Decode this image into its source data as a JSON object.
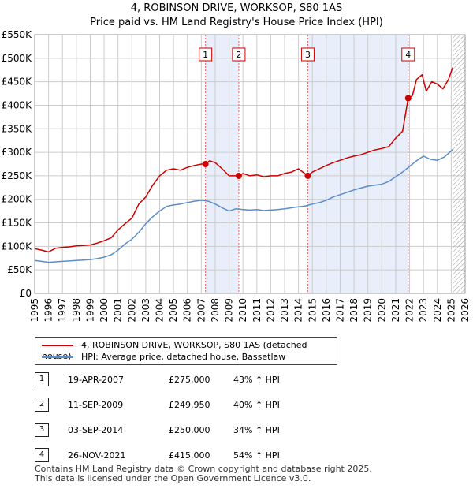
{
  "title": {
    "line1": "4, ROBINSON DRIVE, WORKSOP, S80 1AS",
    "line2": "Price paid vs. HM Land Registry's House Price Index (HPI)"
  },
  "colors": {
    "property": "#cc0000",
    "hpi": "#5b8dc9",
    "shade": "#e8eefa",
    "marker_line": "#e06666",
    "grid": "#cccccc"
  },
  "legend": {
    "property_label": "4, ROBINSON DRIVE, WORKSOP, S80 1AS (detached house)",
    "hpi_label": "HPI: Average price, detached house, Bassetlaw"
  },
  "sales": [
    {
      "num": "1",
      "date": "19-APR-2007",
      "price": "£275,000",
      "hpi": "43% ↑ HPI"
    },
    {
      "num": "2",
      "date": "11-SEP-2009",
      "price": "£249,950",
      "hpi": "40% ↑ HPI"
    },
    {
      "num": "3",
      "date": "03-SEP-2014",
      "price": "£250,000",
      "hpi": "34% ↑ HPI"
    },
    {
      "num": "4",
      "date": "26-NOV-2021",
      "price": "£415,000",
      "hpi": "54% ↑ HPI"
    }
  ],
  "footer": {
    "line1": "Contains HM Land Registry data © Crown copyright and database right 2025.",
    "line2": "This data is licensed under the Open Government Licence v3.0."
  },
  "chart_data": {
    "type": "line",
    "title": "Price paid vs. HM Land Registry's House Price Index (HPI)",
    "xlabel": "",
    "ylabel": "",
    "xlim": [
      1995,
      2026
    ],
    "ylim": [
      0,
      550000
    ],
    "y_ticks": [
      {
        "value": 0,
        "label": "£0"
      },
      {
        "value": 50000,
        "label": "£50K"
      },
      {
        "value": 100000,
        "label": "£100K"
      },
      {
        "value": 150000,
        "label": "£150K"
      },
      {
        "value": 200000,
        "label": "£200K"
      },
      {
        "value": 250000,
        "label": "£250K"
      },
      {
        "value": 300000,
        "label": "£300K"
      },
      {
        "value": 350000,
        "label": "£350K"
      },
      {
        "value": 400000,
        "label": "£400K"
      },
      {
        "value": 450000,
        "label": "£450K"
      },
      {
        "value": 500000,
        "label": "£500K"
      },
      {
        "value": 550000,
        "label": "£550K"
      }
    ],
    "x_ticks": [
      "1995",
      "1996",
      "1997",
      "1998",
      "1999",
      "2000",
      "2001",
      "2002",
      "2003",
      "2004",
      "2005",
      "2006",
      "2007",
      "2008",
      "2009",
      "2010",
      "2011",
      "2012",
      "2013",
      "2014",
      "2015",
      "2016",
      "2017",
      "2018",
      "2019",
      "2020",
      "2021",
      "2022",
      "2023",
      "2024",
      "2025",
      "2026"
    ],
    "grid": true,
    "shaded_ranges": [
      [
        2007.3,
        2009.7
      ],
      [
        2014.67,
        2021.9
      ]
    ],
    "future_hatch_from": 2025.1,
    "sale_markers": [
      {
        "label": "1",
        "x": 2007.3,
        "y": 275000
      },
      {
        "label": "2",
        "x": 2009.7,
        "y": 249950
      },
      {
        "label": "3",
        "x": 2014.67,
        "y": 250000
      },
      {
        "label": "4",
        "x": 2021.9,
        "y": 415000
      }
    ],
    "series": [
      {
        "name": "4, ROBINSON DRIVE, WORKSOP, S80 1AS (detached house)",
        "x": [
          1995,
          1995.5,
          1996,
          1996.5,
          1997,
          1997.5,
          1998,
          1998.5,
          1999,
          1999.5,
          2000,
          2000.5,
          2001,
          2001.5,
          2002,
          2002.5,
          2003,
          2003.5,
          2004,
          2004.5,
          2005,
          2005.5,
          2006,
          2006.5,
          2007,
          2007.3,
          2007.6,
          2008,
          2008.5,
          2009,
          2009.7,
          2010,
          2010.5,
          2011,
          2011.5,
          2012,
          2012.5,
          2013,
          2013.5,
          2014,
          2014.67,
          2015,
          2015.5,
          2016,
          2016.5,
          2017,
          2017.5,
          2018,
          2018.5,
          2019,
          2019.5,
          2020,
          2020.5,
          2021,
          2021.5,
          2021.9,
          2022.2,
          2022.5,
          2022.9,
          2023.2,
          2023.6,
          2024,
          2024.4,
          2024.8,
          2025.1
        ],
        "values": [
          95000,
          92000,
          88000,
          96000,
          98000,
          99000,
          101000,
          102000,
          103000,
          107000,
          112000,
          118000,
          135000,
          148000,
          160000,
          190000,
          205000,
          230000,
          250000,
          262000,
          265000,
          262000,
          268000,
          272000,
          275000,
          275000,
          282000,
          278000,
          265000,
          250000,
          249950,
          255000,
          250000,
          252000,
          248000,
          250000,
          250000,
          255000,
          258000,
          265000,
          250000,
          258000,
          265000,
          272000,
          278000,
          283000,
          288000,
          292000,
          295000,
          300000,
          305000,
          308000,
          312000,
          330000,
          345000,
          415000,
          420000,
          455000,
          465000,
          430000,
          450000,
          445000,
          435000,
          455000,
          480000
        ]
      },
      {
        "name": "HPI: Average price, detached house, Bassetlaw",
        "x": [
          1995,
          1995.5,
          1996,
          1996.5,
          1997,
          1997.5,
          1998,
          1998.5,
          1999,
          1999.5,
          2000,
          2000.5,
          2001,
          2001.5,
          2002,
          2002.5,
          2003,
          2003.5,
          2004,
          2004.5,
          2005,
          2005.5,
          2006,
          2006.5,
          2007,
          2007.5,
          2008,
          2008.5,
          2009,
          2009.5,
          2010,
          2010.5,
          2011,
          2011.5,
          2012,
          2012.5,
          2013,
          2013.5,
          2014,
          2014.5,
          2015,
          2015.5,
          2016,
          2016.5,
          2017,
          2017.5,
          2018,
          2018.5,
          2019,
          2019.5,
          2020,
          2020.5,
          2021,
          2021.5,
          2022,
          2022.5,
          2023,
          2023.5,
          2024,
          2024.5,
          2025,
          2025.1
        ],
        "values": [
          70000,
          68000,
          66000,
          67000,
          68000,
          69000,
          70000,
          71000,
          72000,
          74000,
          77000,
          82000,
          92000,
          105000,
          115000,
          130000,
          148000,
          163000,
          175000,
          185000,
          188000,
          190000,
          193000,
          196000,
          198000,
          196000,
          190000,
          182000,
          175000,
          180000,
          178000,
          177000,
          178000,
          176000,
          177000,
          178000,
          180000,
          182000,
          184000,
          186000,
          190000,
          193000,
          198000,
          205000,
          210000,
          215000,
          220000,
          224000,
          228000,
          230000,
          232000,
          238000,
          248000,
          258000,
          270000,
          282000,
          292000,
          285000,
          283000,
          290000,
          303000,
          306000
        ]
      }
    ]
  }
}
